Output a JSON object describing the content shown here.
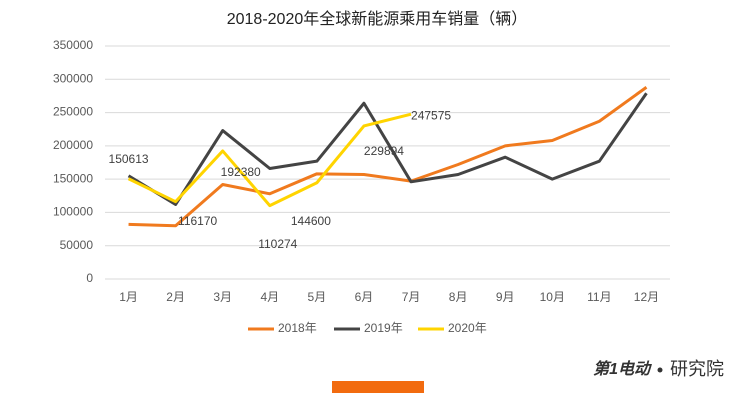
{
  "chart_data": {
    "type": "line",
    "title": "2018-2020年全球新能源乘用车销量（辆）",
    "categories": [
      "1月",
      "2月",
      "3月",
      "4月",
      "5月",
      "6月",
      "7月",
      "8月",
      "9月",
      "10月",
      "11月",
      "12月"
    ],
    "series": [
      {
        "name": "2018年",
        "color": "#f07a1e",
        "values": [
          82000,
          80000,
          142000,
          128000,
          158000,
          157000,
          147000,
          172000,
          200000,
          208000,
          237000,
          288000
        ]
      },
      {
        "name": "2019年",
        "color": "#444444",
        "values": [
          155000,
          112000,
          223000,
          166000,
          177000,
          264000,
          146000,
          157000,
          183000,
          150000,
          177000,
          279000
        ]
      },
      {
        "name": "2020年",
        "color": "#ffd400",
        "values": [
          150613,
          116170,
          192380,
          110274,
          144600,
          229894,
          247575,
          null,
          null,
          null,
          null,
          null
        ],
        "data_labels": true
      }
    ],
    "ylim": [
      0,
      350000
    ],
    "yticks": [
      0,
      50000,
      100000,
      150000,
      200000,
      250000,
      300000,
      350000
    ],
    "grid": true,
    "legend": "bottom"
  },
  "footer": {
    "brand": "第1电动",
    "sub": "研究院"
  }
}
